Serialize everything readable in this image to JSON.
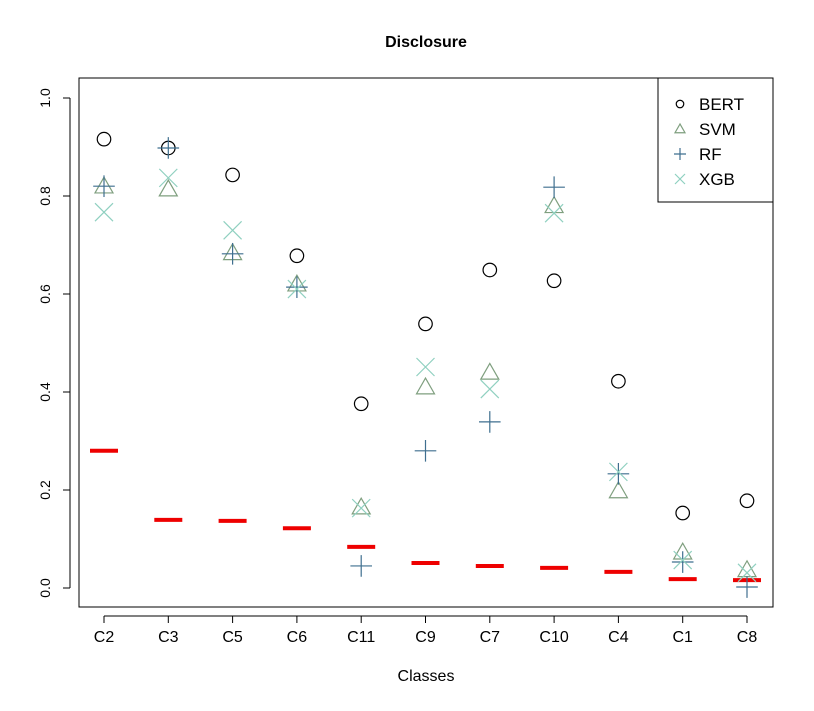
{
  "chart_data": {
    "type": "scatter",
    "title": "Disclosure",
    "xlabel": "Classes",
    "ylabel": "",
    "ylim": [
      0,
      1.0
    ],
    "yticks": [
      "0.0",
      "0.2",
      "0.4",
      "0.6",
      "0.8",
      "1.0"
    ],
    "grid": false,
    "legend_position": "top-right",
    "categories": [
      "C2",
      "C3",
      "C5",
      "C6",
      "C11",
      "C9",
      "C7",
      "C10",
      "C4",
      "C1",
      "C8"
    ],
    "series": [
      {
        "name": "BERT",
        "marker": "circle",
        "color": "#000000",
        "values": [
          0.916,
          0.898,
          0.843,
          0.678,
          0.376,
          0.539,
          0.649,
          0.627,
          0.422,
          0.153,
          0.178
        ]
      },
      {
        "name": "SVM",
        "marker": "triangle",
        "color": "#7f9f7f",
        "values": [
          0.82,
          0.814,
          0.684,
          0.62,
          0.165,
          0.41,
          0.44,
          0.78,
          0.198,
          0.073,
          0.037
        ]
      },
      {
        "name": "RF",
        "marker": "plus",
        "color": "#3f6f8f",
        "values": [
          0.82,
          0.898,
          0.682,
          0.614,
          0.045,
          0.28,
          0.339,
          0.818,
          0.233,
          0.053,
          0.002
        ]
      },
      {
        "name": "XGB",
        "marker": "cross",
        "color": "#8fd0c0",
        "values": [
          0.767,
          0.837,
          0.73,
          0.61,
          0.163,
          0.451,
          0.406,
          0.765,
          0.237,
          0.057,
          0.031
        ]
      }
    ],
    "baseline": {
      "marker": "dash",
      "color": "#ee0000",
      "values": [
        0.28,
        0.139,
        0.137,
        0.122,
        0.084,
        0.051,
        0.045,
        0.041,
        0.033,
        0.018,
        0.016
      ]
    }
  }
}
